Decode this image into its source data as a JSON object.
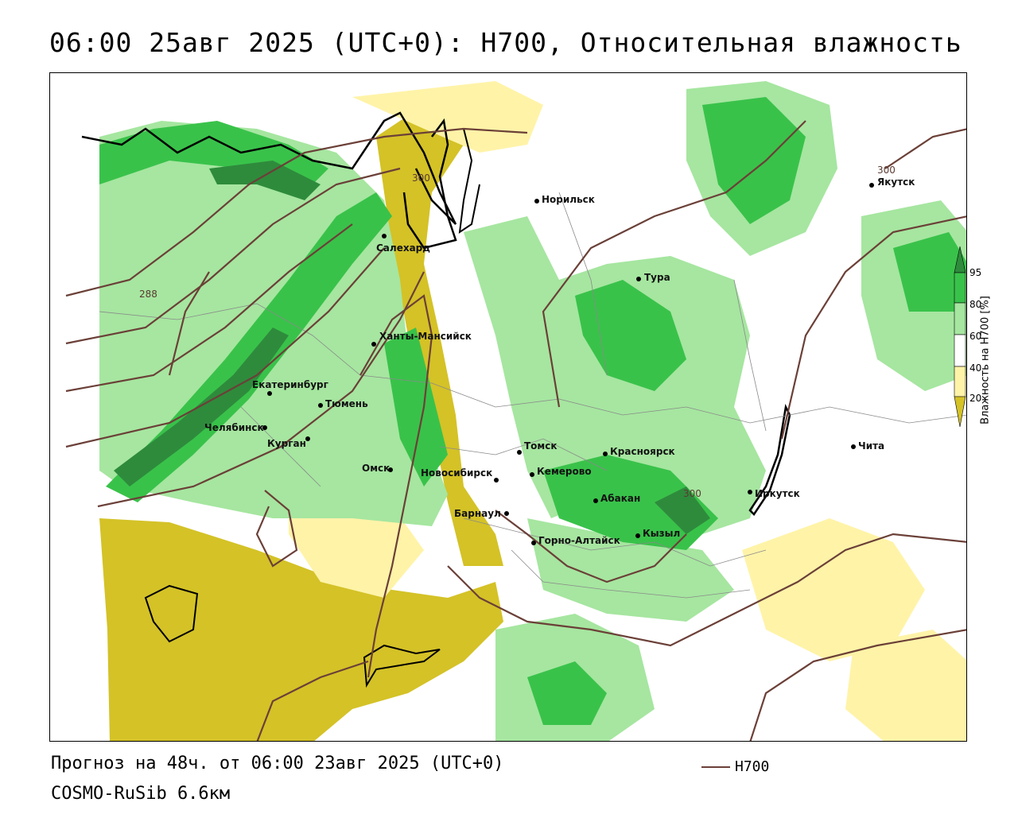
{
  "title": "06:00 25авг 2025 (UTC+0): H700, Относительная влажность",
  "footer": {
    "forecast": "Прогноз на 48ч. от 06:00 23авг 2025 (UTC+0)",
    "model": "COSMO-RuSib 6.6км",
    "legend_line_label": "H700"
  },
  "colorbar": {
    "label": "Влажность на H700 [%]",
    "ticks": [
      "95",
      "80",
      "60",
      "40",
      "20"
    ],
    "colors": {
      "c95": "#2e8b3c",
      "c80": "#39c24a",
      "c60": "#a6e6a0",
      "c50": "#ffffff",
      "c40": "#fff3a8",
      "c20": "#d4c227"
    }
  },
  "isolines": {
    "color": "#6b4038",
    "labels": [
      "300",
      "300",
      "288",
      "300"
    ]
  },
  "cities": [
    {
      "name": "Норильск"
    },
    {
      "name": "Якутск"
    },
    {
      "name": "Салехард"
    },
    {
      "name": "Тура"
    },
    {
      "name": "Ханты-Мансийск"
    },
    {
      "name": "Екатеринбург"
    },
    {
      "name": "Тюмень"
    },
    {
      "name": "Челябинск"
    },
    {
      "name": "Курган"
    },
    {
      "name": "Омск"
    },
    {
      "name": "Новосибирск"
    },
    {
      "name": "Томск"
    },
    {
      "name": "Кемерово"
    },
    {
      "name": "Красноярск"
    },
    {
      "name": "Абакан"
    },
    {
      "name": "Барнаул"
    },
    {
      "name": "Горно-Алтайск"
    },
    {
      "name": "Кызыл"
    },
    {
      "name": "Иркутск"
    },
    {
      "name": "Чита"
    }
  ]
}
